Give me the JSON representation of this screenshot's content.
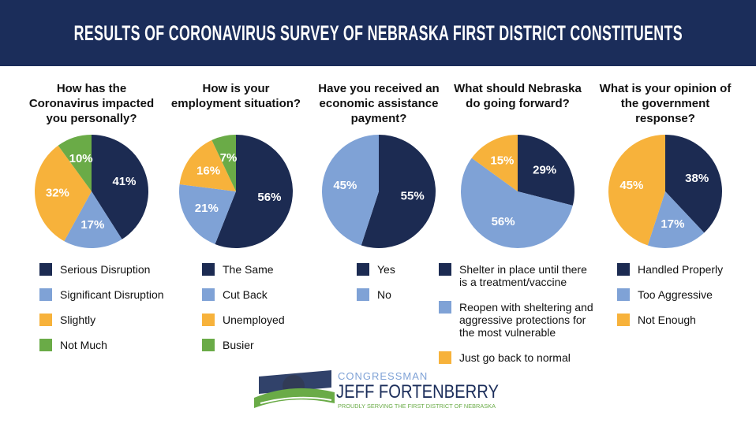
{
  "title": "RESULTS OF CORONAVIRUS SURVEY OF NEBRASKA FIRST DISTRICT CONSTITUENTS",
  "logo": {
    "top": "CONGRESSMAN",
    "name": "JEFF FORTENBERRY",
    "tagline": "PROUDLY SERVING THE FIRST DISTRICT OF NEBRASKA"
  },
  "chart_data": [
    {
      "type": "pie",
      "title": "How has the Coronavirus impacted you personally?",
      "categories": [
        "Serious Disruption",
        "Significant Disruption",
        "Slightly",
        "Not Much"
      ],
      "values": [
        41,
        17,
        32,
        10
      ],
      "value_labels": [
        "41%",
        "17%",
        "32%",
        "10%"
      ],
      "colors": [
        "#1c2b52",
        "#7fa2d6",
        "#f7b23b",
        "#6aab47"
      ]
    },
    {
      "type": "pie",
      "title": "How is your employment situation?",
      "categories": [
        "The Same",
        "Cut Back",
        "Unemployed",
        "Busier"
      ],
      "values": [
        56,
        21,
        16,
        7
      ],
      "value_labels": [
        "56%",
        "21%",
        "16%",
        "7%"
      ],
      "colors": [
        "#1c2b52",
        "#7fa2d6",
        "#f7b23b",
        "#6aab47"
      ]
    },
    {
      "type": "pie",
      "title": "Have you received an economic assistance payment?",
      "categories": [
        "Yes",
        "No"
      ],
      "values": [
        55,
        45
      ],
      "value_labels": [
        "55%",
        "45%"
      ],
      "colors": [
        "#1c2b52",
        "#7fa2d6"
      ]
    },
    {
      "type": "pie",
      "title": "What should Nebraska do going forward?",
      "categories": [
        "Shelter in place until there is a treatment/vaccine",
        "Reopen with sheltering and aggressive protections for the most vulnerable",
        "Just go back to normal"
      ],
      "values": [
        29,
        56,
        15
      ],
      "value_labels": [
        "29%",
        "56%",
        "15%"
      ],
      "colors": [
        "#1c2b52",
        "#7fa2d6",
        "#f7b23b"
      ]
    },
    {
      "type": "pie",
      "title": "What is your opinion of the government response?",
      "categories": [
        "Handled Properly",
        "Too Aggressive",
        "Not Enough"
      ],
      "values": [
        38,
        17,
        45
      ],
      "value_labels": [
        "38%",
        "17%",
        "45%"
      ],
      "colors": [
        "#1c2b52",
        "#7fa2d6",
        "#f7b23b"
      ]
    }
  ]
}
